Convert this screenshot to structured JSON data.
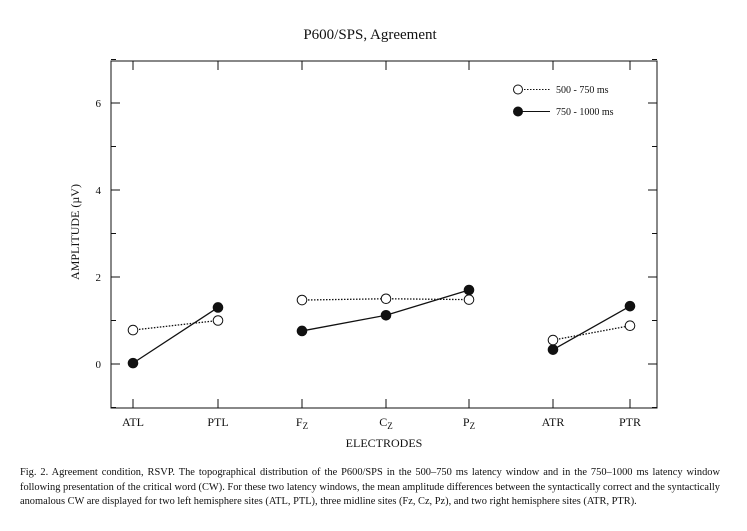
{
  "chart_data": {
    "type": "line",
    "title": "P600/SPS, Agreement",
    "xlabel": "ELECTRODES",
    "ylabel": "AMPLITUDE (µV)",
    "ylim": [
      -1,
      7.2
    ],
    "yticks": [
      0,
      2,
      4,
      6
    ],
    "categories": [
      "ATL",
      "PTL",
      "FZ",
      "CZ",
      "PZ",
      "ATR",
      "PTR"
    ],
    "category_labels": [
      {
        "main": "ATL",
        "sub": ""
      },
      {
        "main": "PTL",
        "sub": ""
      },
      {
        "main": "F",
        "sub": "Z"
      },
      {
        "main": "C",
        "sub": "Z"
      },
      {
        "main": "P",
        "sub": "Z"
      },
      {
        "main": "ATR",
        "sub": ""
      },
      {
        "main": "PTR",
        "sub": ""
      }
    ],
    "groups": [
      [
        "ATL",
        "PTL"
      ],
      [
        "FZ",
        "CZ",
        "PZ"
      ],
      [
        "ATR",
        "PTR"
      ]
    ],
    "series": [
      {
        "name": "500 - 750 ms",
        "marker": "open-circle",
        "line": "dotted",
        "values": [
          0.78,
          1.0,
          1.47,
          1.5,
          1.48,
          0.55,
          0.88
        ]
      },
      {
        "name": "750 - 1000 ms",
        "marker": "filled-circle",
        "line": "solid",
        "values": [
          0.02,
          1.3,
          0.76,
          1.12,
          1.7,
          0.33,
          1.33
        ]
      }
    ],
    "legend_position": "top-right",
    "grid": false
  },
  "caption": "Fig. 2. Agreement condition, RSVP. The topographical distribution of the P600/SPS in the 500–750 ms latency window and in the 750–1000 ms latency window following presentation of the critical word (CW). For these two latency windows, the mean amplitude differences between the syntactically correct and the syntactically anomalous CW are displayed for two left hemisphere sites (ATL, PTL), three midline sites (Fz, Cz, Pz), and two right hemisphere sites (ATR, PTR)."
}
